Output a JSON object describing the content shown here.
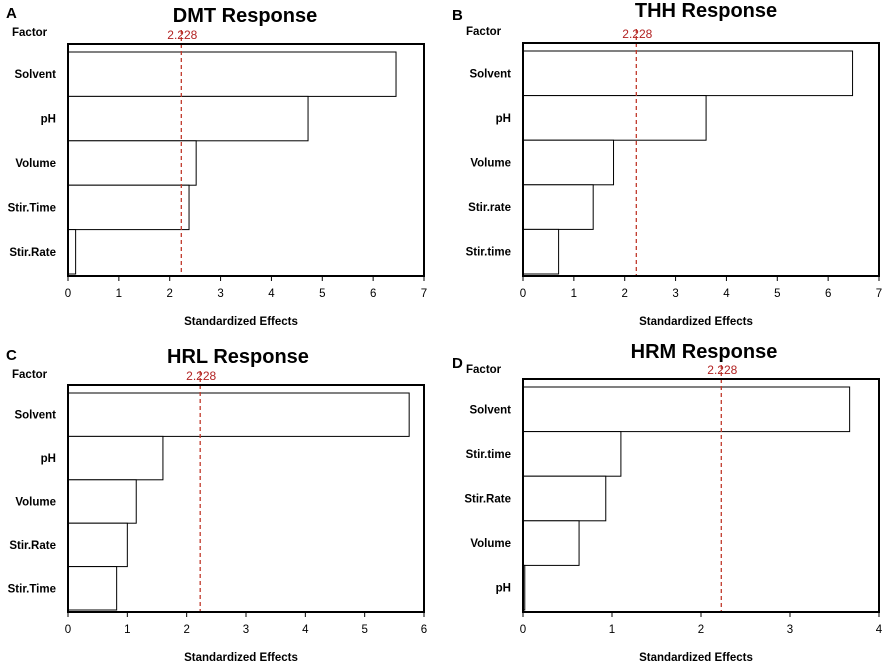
{
  "chart_data": [
    {
      "type": "bar",
      "orientation": "horizontal",
      "panel": "A",
      "title": "DMT Response",
      "factor_label": "Factor",
      "xlabel": "Standardized Effects",
      "categories": [
        "Solvent",
        "pH",
        "Volume",
        "Stir.Time",
        "Stir.Rate"
      ],
      "values": [
        6.45,
        4.72,
        2.52,
        2.38,
        0.15
      ],
      "xlim": [
        0,
        7
      ],
      "xticks": [
        0,
        1,
        2,
        3,
        4,
        5,
        6,
        7
      ],
      "reference_value": 2.228,
      "reference_label": "2.228",
      "colors": {
        "bar_fill": "#ffffff",
        "bar_stroke": "#000000",
        "reference": "#c0392b"
      }
    },
    {
      "type": "bar",
      "orientation": "horizontal",
      "panel": "B",
      "title": "THH Response",
      "factor_label": "Factor",
      "xlabel": "Standardized Effects",
      "categories": [
        "Solvent",
        "pH",
        "Volume",
        "Stir.rate",
        "Stir.time"
      ],
      "values": [
        6.48,
        3.6,
        1.78,
        1.38,
        0.7
      ],
      "xlim": [
        0,
        7
      ],
      "xticks": [
        0,
        1,
        2,
        3,
        4,
        5,
        6,
        7
      ],
      "reference_value": 2.228,
      "reference_label": "2.228",
      "colors": {
        "bar_fill": "#ffffff",
        "bar_stroke": "#000000",
        "reference": "#c0392b"
      }
    },
    {
      "type": "bar",
      "orientation": "horizontal",
      "panel": "C",
      "title": "HRL Response",
      "factor_label": "Factor",
      "xlabel": "Standardized Effects",
      "categories": [
        "Solvent",
        "pH",
        "Volume",
        "Stir.Rate",
        "Stir.Time"
      ],
      "values": [
        5.75,
        1.6,
        1.15,
        1.0,
        0.82
      ],
      "xlim": [
        0,
        6
      ],
      "xticks": [
        0,
        1,
        2,
        3,
        4,
        5,
        6
      ],
      "reference_value": 2.228,
      "reference_label": "2.228",
      "colors": {
        "bar_fill": "#ffffff",
        "bar_stroke": "#000000",
        "reference": "#c0392b"
      }
    },
    {
      "type": "bar",
      "orientation": "horizontal",
      "panel": "D",
      "title": "HRM Response",
      "factor_label": "Factor",
      "xlabel": "Standardized Effects",
      "categories": [
        "Solvent",
        "Stir.time",
        "Stir.Rate",
        "Volume",
        "pH"
      ],
      "values": [
        3.67,
        1.1,
        0.93,
        0.63,
        0.02
      ],
      "xlim": [
        0,
        4
      ],
      "xticks": [
        0,
        1,
        2,
        3,
        4
      ],
      "reference_value": 2.228,
      "reference_label": "2.228",
      "colors": {
        "bar_fill": "#ffffff",
        "bar_stroke": "#000000",
        "reference": "#c0392b"
      }
    }
  ]
}
